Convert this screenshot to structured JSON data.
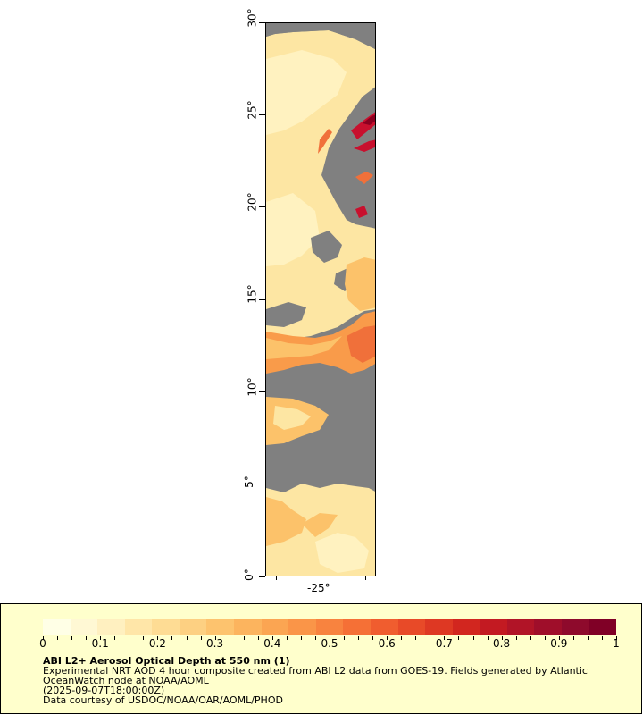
{
  "map": {
    "y_axis_labels": [
      "0°",
      "5°",
      "10°",
      "15°",
      "20°",
      "25°",
      "30°"
    ],
    "x_axis_labels": [
      "-25°"
    ],
    "no_data_color": "#808080",
    "colors": {
      "light": "#fde6a3",
      "pale": "#fff2c0",
      "mid": "#fcc26a",
      "orange": "#f99b4a",
      "deep_orange": "#f0703a",
      "red": "#c8102e",
      "dark_red": "#8b0020"
    }
  },
  "legend": {
    "scale_labels": [
      "0",
      "0.1",
      "0.2",
      "0.3",
      "0.4",
      "0.5",
      "0.6",
      "0.7",
      "0.8",
      "0.9",
      "1"
    ],
    "title": "ABI L2+ Aerosol Optical Depth at 550 nm (1)",
    "lines": [
      "Experimental NRT AOD 4 hour composite created from ABI L2 data from GOES-19. Fields generated by Atlantic",
      "OceanWatch node at NOAA/AOML",
      "(2025-09-07T18:00:00Z)",
      "Data courtesy of USDOC/NOAA/OAR/AOML/PHOD"
    ],
    "palette": [
      "#ffffe6",
      "#fff8d4",
      "#fff0c0",
      "#ffe6a8",
      "#fedc94",
      "#fdd082",
      "#fdc36e",
      "#fcb45e",
      "#fba552",
      "#fa9548",
      "#f8833f",
      "#f57036",
      "#f05d2f",
      "#e84a28",
      "#de3823",
      "#d2261f",
      "#c31a22",
      "#b11427",
      "#9f0e2a",
      "#8e0a2c",
      "#800026"
    ]
  }
}
